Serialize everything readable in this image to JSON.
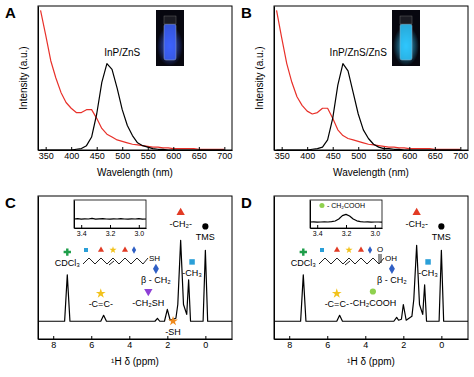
{
  "chart_data": [
    {
      "type": "line",
      "title": "A",
      "x_label": "Wavelength (nm)",
      "y_label": "Intensity (a.u.)",
      "x": [
        340,
        350,
        360,
        370,
        380,
        390,
        400,
        410,
        420,
        430,
        440,
        450,
        460,
        470,
        480,
        490,
        500,
        510,
        520,
        530,
        540,
        550,
        560,
        570,
        580,
        590,
        600,
        610,
        620,
        630,
        640,
        650,
        660,
        670,
        680,
        690,
        700
      ],
      "series": [
        {
          "color": "#e8312a",
          "values": [
            0.97,
            0.8,
            0.62,
            0.5,
            0.4,
            0.33,
            0.29,
            0.26,
            0.26,
            0.28,
            0.28,
            0.22,
            0.15,
            0.11,
            0.09,
            0.07,
            0.06,
            0.05,
            0.04,
            0.035,
            0.03,
            0.025,
            0.02,
            0.02,
            0.015,
            0.015,
            0.01,
            0.01,
            0.01,
            0.01,
            0.01,
            0.005,
            0.005,
            0.005,
            0.005,
            0.005,
            0.005
          ]
        },
        {
          "color": "#000000",
          "values": [
            0,
            0,
            0,
            0,
            0,
            0,
            0,
            0.005,
            0.01,
            0.03,
            0.09,
            0.25,
            0.47,
            0.6,
            0.56,
            0.43,
            0.28,
            0.17,
            0.1,
            0.05,
            0.03,
            0.02,
            0.01,
            0.005,
            0.005,
            0,
            0,
            0,
            0,
            0,
            0,
            0,
            0,
            0,
            0,
            0,
            0
          ]
        }
      ],
      "xlim": [
        335,
        715
      ],
      "ylim": [
        0,
        1
      ],
      "xticks": [
        350,
        400,
        450,
        500,
        550,
        600,
        650,
        700
      ],
      "tick_labels": "x",
      "annotations": [
        {
          "text": "InP/ZnS",
          "x": 500,
          "y": 0.68
        }
      ]
    },
    {
      "type": "line",
      "title": "B",
      "x_label": "Wavelength (nm)",
      "y_label": "Intensity (a.u.)",
      "x": [
        340,
        350,
        360,
        370,
        380,
        390,
        400,
        410,
        420,
        430,
        440,
        450,
        460,
        470,
        480,
        490,
        500,
        510,
        520,
        530,
        540,
        550,
        560,
        570,
        580,
        590,
        600,
        610,
        620,
        630,
        640,
        650,
        660,
        670,
        680,
        690,
        700
      ],
      "series": [
        {
          "color": "#e8312a",
          "values": [
            0.97,
            0.78,
            0.6,
            0.47,
            0.37,
            0.31,
            0.27,
            0.25,
            0.26,
            0.29,
            0.29,
            0.22,
            0.14,
            0.1,
            0.08,
            0.07,
            0.06,
            0.05,
            0.04,
            0.035,
            0.03,
            0.025,
            0.02,
            0.02,
            0.015,
            0.015,
            0.01,
            0.01,
            0.01,
            0.01,
            0.01,
            0.005,
            0.005,
            0.005,
            0.005,
            0.005,
            0.005
          ]
        },
        {
          "color": "#000000",
          "values": [
            0,
            0,
            0,
            0,
            0,
            0,
            0,
            0.005,
            0.01,
            0.02,
            0.07,
            0.22,
            0.45,
            0.6,
            0.55,
            0.4,
            0.25,
            0.14,
            0.08,
            0.04,
            0.02,
            0.01,
            0.01,
            0.005,
            0.005,
            0,
            0,
            0,
            0,
            0,
            0,
            0,
            0,
            0,
            0,
            0,
            0
          ]
        }
      ],
      "xlim": [
        335,
        715
      ],
      "ylim": [
        0,
        1
      ],
      "xticks": [
        350,
        400,
        450,
        500,
        550,
        600,
        650,
        700
      ],
      "tick_labels": "x",
      "annotations": [
        {
          "text": "InP/ZnS/ZnS",
          "x": 500,
          "y": 0.68
        }
      ]
    },
    {
      "type": "line",
      "title": "C",
      "x_label": "¹H δ (ppm)",
      "x": [
        8.8,
        7.4,
        7.26,
        7.12,
        5.5,
        5.35,
        5.2,
        2.65,
        2.52,
        2.4,
        2.15,
        2.0,
        1.85,
        1.55,
        1.45,
        1.3,
        1.15,
        0.98,
        0.88,
        0.78,
        0.12,
        0,
        -0.12,
        -1.4
      ],
      "series": [
        {
          "color": "#000000",
          "values": [
            0.03,
            0.03,
            0.5,
            0.03,
            0.03,
            0.09,
            0.03,
            0.03,
            0.06,
            0.03,
            0.03,
            0.15,
            0.04,
            0.06,
            0.2,
            0.85,
            0.2,
            0.1,
            0.45,
            0.03,
            0.03,
            0.75,
            0.03,
            0.03
          ]
        }
      ],
      "xlim": [
        8.8,
        -1.4
      ],
      "ylim": [
        -0.15,
        1.3
      ],
      "xticks": [
        8,
        6,
        4,
        2,
        0
      ],
      "tick_labels": "x",
      "annotations": [
        {
          "text": "CDCl₃",
          "x": 7.26,
          "y": 0.62,
          "marker": "cross",
          "color": "#1e9e4a"
        },
        {
          "text": "-C=C-",
          "x": 5.5,
          "y": 0.2,
          "marker": "star",
          "color": "#f2c21b"
        },
        {
          "text": "-CH₂SH",
          "x": 3.0,
          "y": 0.22,
          "marker": "triangle-down",
          "color": "#8e3fd6"
        },
        {
          "text": "β - CH₂",
          "x": 2.6,
          "y": 0.45,
          "marker": "diamond",
          "color": "#2f5fc4"
        },
        {
          "text": "-CH₂-",
          "x": 1.3,
          "y": 1.02,
          "marker": "triangle",
          "color": "#e23b24"
        },
        {
          "text": "-CH₃",
          "x": 0.7,
          "y": 0.52,
          "marker": "square",
          "color": "#2a9fd8"
        },
        {
          "text": "TMS",
          "x": 0,
          "y": 0.88,
          "marker": "circle",
          "color": "#000000"
        },
        {
          "text": "-SH",
          "x": 1.7,
          "y": -0.08,
          "marker": "star",
          "color": "#f08a1c"
        }
      ],
      "molecule": {
        "labels": [
          "SH"
        ]
      },
      "inset": {
        "type": "line",
        "x": [
          3.45,
          3.425,
          3.4,
          3.375,
          3.35,
          3.325,
          3.3,
          3.275,
          3.25,
          3.225,
          3.2,
          3.175,
          3.15,
          3.125,
          3.1,
          3.075,
          3.05,
          3.025,
          3.0,
          2.975,
          2.95
        ],
        "series": [
          {
            "color": "#000000",
            "values": [
              0.45,
              0.47,
              0.44,
              0.46,
              0.45,
              0.48,
              0.44,
              0.46,
              0.47,
              0.45,
              0.44,
              0.46,
              0.45,
              0.47,
              0.45,
              0.44,
              0.46,
              0.45,
              0.47,
              0.44,
              0.45
            ]
          }
        ],
        "xlim": [
          3.45,
          2.95
        ],
        "ylim": [
          0,
          1.4
        ],
        "xticks": [
          3.4,
          3.2,
          {
            "value": 3,
            "label": "3.0"
          }
        ],
        "tick_labels": "x"
      }
    },
    {
      "type": "line",
      "title": "D",
      "x_label": "¹H δ (ppm)",
      "x": [
        8.8,
        7.4,
        7.26,
        7.12,
        5.5,
        5.35,
        5.2,
        2.5,
        2.35,
        2.25,
        2.1,
        2.0,
        1.85,
        1.55,
        1.45,
        1.3,
        1.15,
        0.98,
        0.88,
        0.78,
        0.12,
        0,
        -0.12,
        -1.4
      ],
      "series": [
        {
          "color": "#000000",
          "values": [
            0.03,
            0.03,
            0.5,
            0.03,
            0.03,
            0.09,
            0.03,
            0.03,
            0.07,
            0.04,
            0.05,
            0.2,
            0.04,
            0.08,
            0.25,
            0.8,
            0.2,
            0.1,
            0.4,
            0.03,
            0.03,
            0.75,
            0.03,
            0.03
          ]
        }
      ],
      "xlim": [
        8.8,
        -1.4
      ],
      "ylim": [
        -0.15,
        1.3
      ],
      "xticks": [
        8,
        6,
        4,
        2,
        0
      ],
      "tick_labels": "x",
      "annotations": [
        {
          "text": "CDCl₃",
          "x": 7.26,
          "y": 0.62,
          "marker": "cross",
          "color": "#1e9e4a"
        },
        {
          "text": "-C=C-",
          "x": 5.5,
          "y": 0.2,
          "marker": "star",
          "color": "#f2c21b"
        },
        {
          "text": "-CH₂COOH",
          "x": 3.6,
          "y": 0.22,
          "marker": "circle",
          "color": "#8fd14f"
        },
        {
          "text": "β - CH₂",
          "x": 2.6,
          "y": 0.45,
          "marker": "diamond",
          "color": "#2f5fc4"
        },
        {
          "text": "-CH₂-",
          "x": 1.3,
          "y": 1.02,
          "marker": "triangle",
          "color": "#e23b24"
        },
        {
          "text": "-CH₃",
          "x": 0.7,
          "y": 0.52,
          "marker": "square",
          "color": "#2a9fd8"
        },
        {
          "text": "TMS",
          "x": 0,
          "y": 0.88,
          "marker": "circle",
          "color": "#000000"
        }
      ],
      "molecule": {
        "labels": [
          "O",
          "OH"
        ]
      },
      "inset": {
        "type": "line",
        "x": [
          3.45,
          3.425,
          3.4,
          3.375,
          3.35,
          3.325,
          3.3,
          3.275,
          3.25,
          3.225,
          3.2,
          3.175,
          3.15,
          3.125,
          3.1,
          3.075,
          3.05,
          3.025,
          3.0,
          2.975,
          2.95
        ],
        "series": [
          {
            "color": "#000000",
            "values": [
              0.3,
              0.31,
              0.29,
              0.3,
              0.31,
              0.3,
              0.32,
              0.35,
              0.45,
              0.62,
              0.68,
              0.6,
              0.45,
              0.36,
              0.32,
              0.3,
              0.31,
              0.29,
              0.3,
              0.3,
              0.29
            ]
          }
        ],
        "xlim": [
          3.45,
          2.95
        ],
        "ylim": [
          0,
          1.4
        ],
        "xticks": [
          3.4,
          3.2,
          {
            "value": 3,
            "label": "3.0"
          }
        ],
        "tick_labels": "x",
        "annotations": [
          {
            "text": "- CH₂COOH",
            "x": 3.2,
            "y": 1.12,
            "marker": "circle",
            "color": "#8fd14f"
          }
        ]
      }
    }
  ]
}
